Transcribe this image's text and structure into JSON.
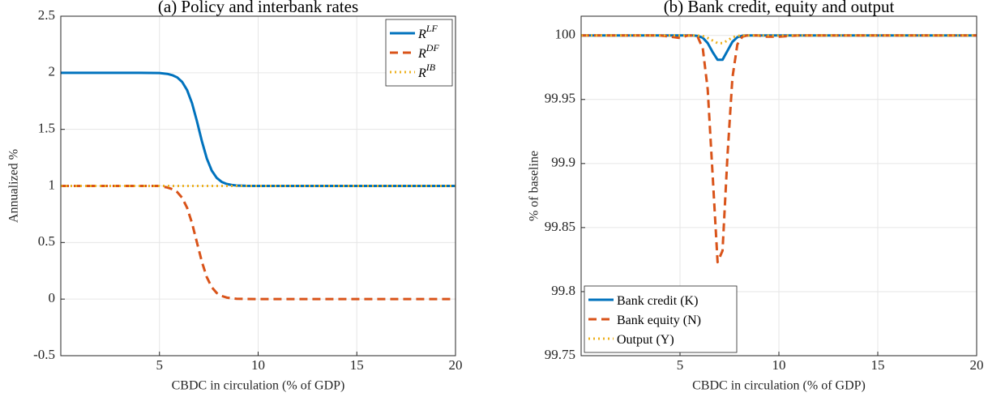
{
  "chart_data": [
    {
      "type": "line",
      "title": "(a) Policy and interbank rates",
      "xlabel": "CBDC in circulation (% of GDP)",
      "ylabel": "Annualized %",
      "x": [
        0,
        1,
        2,
        3,
        4,
        5,
        5.4,
        5.65,
        5.9,
        6.15,
        6.4,
        6.65,
        6.9,
        7.15,
        7.4,
        7.65,
        7.9,
        8.15,
        8.4,
        8.65,
        8.9,
        9.4,
        10,
        11,
        12,
        13,
        14,
        15,
        16,
        17,
        18,
        19,
        20
      ],
      "series": [
        {
          "name": "R",
          "name_superscript": "LF",
          "color": "#0072BD",
          "style": "solid",
          "values": [
            2,
            2,
            2,
            2,
            2,
            1.998,
            1.99,
            1.979,
            1.959,
            1.919,
            1.847,
            1.731,
            1.571,
            1.395,
            1.242,
            1.135,
            1.071,
            1.036,
            1.018,
            1.009,
            1.004,
            1.001,
            1,
            1,
            1,
            1,
            1,
            1,
            1,
            1,
            1,
            1,
            1
          ]
        },
        {
          "name": "R",
          "name_superscript": "DF",
          "color": "#D95319",
          "style": "dashed",
          "values": [
            1,
            1,
            1,
            1,
            1,
            1,
            0.986,
            0.972,
            0.946,
            0.895,
            0.807,
            0.671,
            0.5,
            0.329,
            0.193,
            0.105,
            0.054,
            0.028,
            0.014,
            0.007,
            0.003,
            0.001,
            0,
            0,
            0,
            0,
            0,
            0,
            0,
            0,
            0,
            0,
            0
          ]
        },
        {
          "name": "R",
          "name_superscript": "IB",
          "color": "#EDB120",
          "style": "dotted",
          "values": [
            1,
            1,
            1,
            1,
            1,
            1,
            1,
            1,
            1,
            1,
            1,
            1,
            1,
            1,
            1,
            1,
            1,
            1,
            1,
            1,
            1,
            1,
            1,
            1,
            1,
            1,
            1,
            1,
            1,
            1,
            1,
            1,
            1
          ]
        }
      ],
      "xlim": [
        0,
        20
      ],
      "xticks": [
        5,
        10,
        15,
        20
      ],
      "ylim": [
        -0.5,
        2.5
      ],
      "yticks": [
        -0.5,
        0,
        0.5,
        1,
        1.5,
        2,
        2.5
      ],
      "grid": true,
      "legend": "top-right"
    },
    {
      "type": "line",
      "title": "(b) Bank credit, equity and output",
      "xlabel": "CBDC in circulation (% of GDP)",
      "ylabel": "% of baseline",
      "x": [
        0,
        1,
        2,
        3,
        4,
        5,
        5.4,
        5.65,
        5.9,
        6.15,
        6.4,
        6.65,
        6.9,
        7.15,
        7.4,
        7.65,
        7.9,
        8.15,
        8.4,
        8.65,
        8.9,
        9.4,
        10,
        11,
        12,
        13,
        14,
        15,
        16,
        17,
        18,
        19,
        20
      ],
      "series": [
        {
          "name": "Bank credit (K)",
          "color": "#0072BD",
          "style": "solid",
          "values": [
            100,
            100,
            100,
            100,
            100,
            100,
            100,
            100,
            99.9996,
            99.9982,
            99.994,
            99.987,
            99.981,
            99.981,
            99.988,
            99.995,
            99.9986,
            99.9998,
            100,
            100,
            100,
            100,
            100,
            100,
            100,
            100,
            100,
            100,
            100,
            100,
            100,
            100,
            100
          ]
        },
        {
          "name": "Bank equity (N)",
          "color": "#D95319",
          "style": "dashed",
          "values": [
            100,
            100,
            100,
            100,
            100,
            99.998,
            100,
            99.9999,
            99.9986,
            99.9901,
            99.958,
            99.891,
            99.823,
            99.832,
            99.906,
            99.967,
            99.993,
            99.999,
            100,
            100,
            100,
            99.999,
            99.999,
            100,
            100,
            100,
            100,
            100,
            100,
            100,
            100,
            100,
            100
          ]
        },
        {
          "name": "Output (Y)",
          "color": "#EDB120",
          "style": "dotted",
          "values": [
            100,
            100,
            100,
            100,
            100,
            100,
            100,
            100,
            99.9999,
            99.9995,
            99.998,
            99.996,
            99.994,
            99.994,
            99.996,
            99.9985,
            99.9996,
            100,
            100,
            100,
            100,
            100,
            100,
            100,
            100,
            100,
            100,
            100,
            100,
            100,
            100,
            100,
            100
          ]
        }
      ],
      "xlim": [
        0,
        20
      ],
      "xticks": [
        5,
        10,
        15,
        20
      ],
      "ylim": [
        99.75,
        100.015
      ],
      "yticks": [
        99.75,
        99.8,
        99.85,
        99.9,
        99.95,
        100
      ],
      "grid": true,
      "legend": "bottom-left"
    }
  ]
}
